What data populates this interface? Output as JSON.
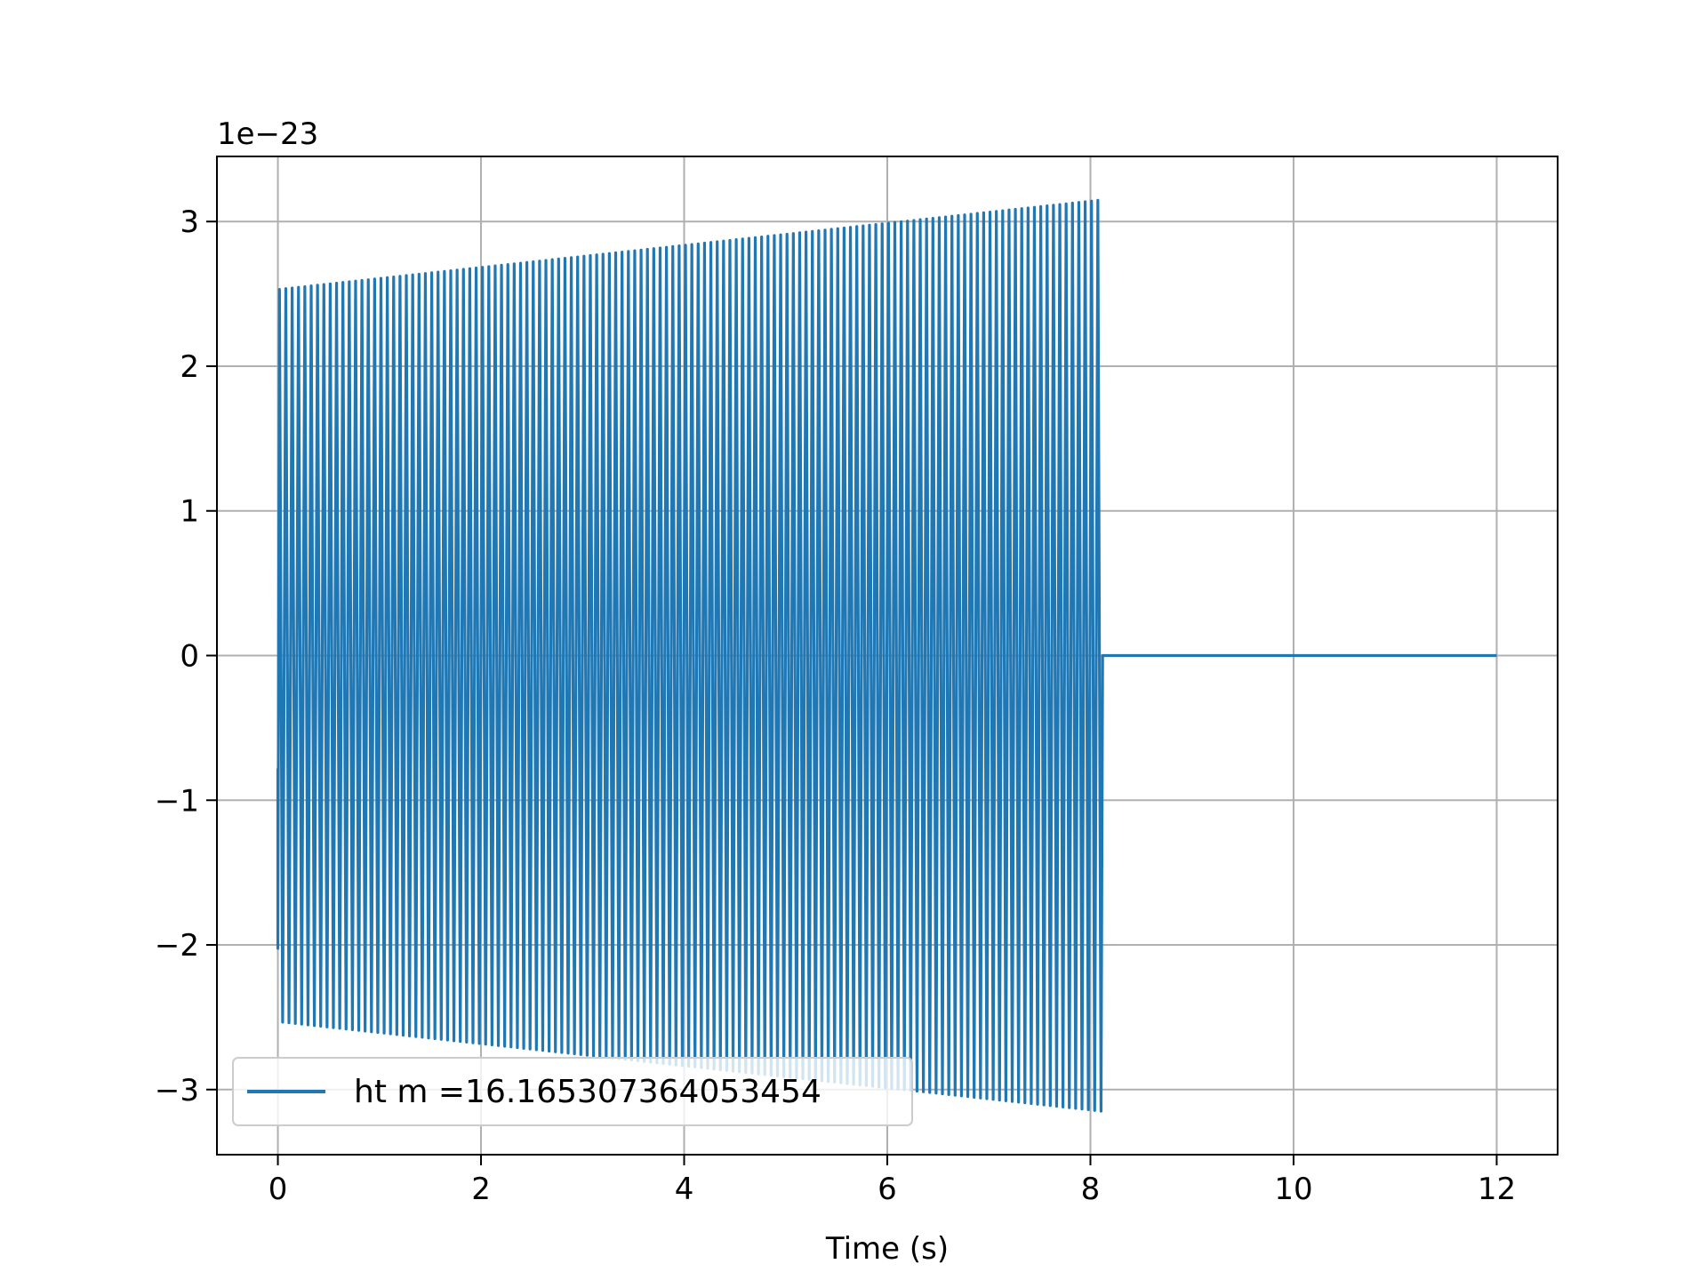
{
  "chart_data": {
    "type": "line",
    "title": "",
    "xlabel": "Time (s)",
    "ylabel": "",
    "y_offset_label": "1e−23",
    "y_scale_exponent": -23,
    "xlim": [
      -0.6,
      12.6
    ],
    "ylim": [
      -3.45,
      3.45
    ],
    "x_ticks": [
      0,
      2,
      4,
      6,
      8,
      10,
      12
    ],
    "x_tick_labels": [
      "0",
      "2",
      "4",
      "6",
      "8",
      "10",
      "12"
    ],
    "y_ticks": [
      -3,
      -2,
      -1,
      0,
      1,
      2,
      3
    ],
    "y_tick_labels": [
      "−3",
      "−2",
      "−1",
      "0",
      "1",
      "2",
      "3"
    ],
    "grid": true,
    "legend_position": "lower-left",
    "series": [
      {
        "name": "ht m =16.165307364053454",
        "color": "#1f77b4",
        "signal_start": 0.0,
        "signal_end": 8.12,
        "data_end": 12.0,
        "amplitude_start": 2.53,
        "amplitude_end": 3.15,
        "initial_value": -0.78,
        "cycles_visible": 130,
        "after_signal_value": 0
      }
    ]
  }
}
